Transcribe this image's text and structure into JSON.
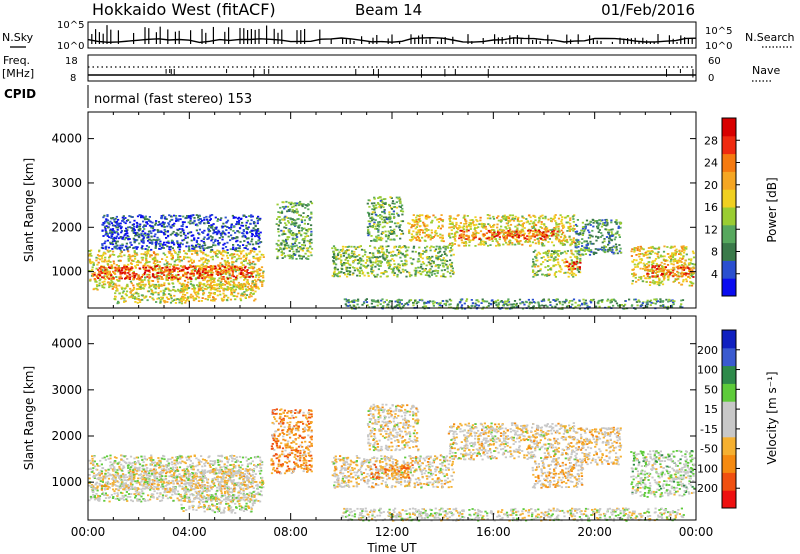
{
  "header": {
    "station": "Hokkaido West (fitACF)",
    "beam": "Beam 14",
    "date": "01/Feb/2016"
  },
  "strip_panels": {
    "nsky_label": "N.Sky",
    "nsearch_label": "N.Search",
    "nsky_ticks": [
      "10^5",
      "10^0"
    ],
    "freq_label_lines": [
      "Freq.",
      "[MHz]"
    ],
    "freq_ticks": [
      "18",
      "8"
    ],
    "nave_label": "Nave",
    "nave_ticks": [
      "60",
      "0"
    ],
    "cpid_label": "CPID",
    "cpid_text": "normal (fast stereo) 153"
  },
  "chart_data": [
    {
      "type": "heatmap",
      "name": "power",
      "xlabel": "Time UT",
      "ylabel": "Slant Range [km]",
      "x_range_hours": [
        0,
        24
      ],
      "ylim": [
        180,
        4600
      ],
      "yticks": [
        1000,
        2000,
        3000,
        4000
      ],
      "colorbar": {
        "label": "Power [dB]",
        "ticks": [
          "4",
          "8",
          "12",
          "16",
          "20",
          "24",
          "28"
        ],
        "colors": [
          "#0a0cf0",
          "#2a4fd0",
          "#3a7a4a",
          "#57a85e",
          "#9acd32",
          "#f0d020",
          "#f5a623",
          "#f57a10",
          "#ef2a10",
          "#d80000"
        ]
      },
      "bands": [
        {
          "t0": 0.0,
          "t1": 6.9,
          "r0": 600,
          "r1": 1500,
          "level": 0.55
        },
        {
          "t0": 0.2,
          "t1": 6.5,
          "r0": 850,
          "r1": 1150,
          "level": 0.85
        },
        {
          "t0": 1.0,
          "t1": 3.8,
          "r0": 300,
          "r1": 600,
          "level": 0.5
        },
        {
          "t0": 3.6,
          "t1": 6.6,
          "r0": 350,
          "r1": 750,
          "level": 0.55
        },
        {
          "t0": 0.5,
          "t1": 6.8,
          "r0": 1500,
          "r1": 2300,
          "level": 0.15
        },
        {
          "t0": 7.4,
          "t1": 8.8,
          "r0": 1300,
          "r1": 2600,
          "level": 0.35
        },
        {
          "t0": 9.6,
          "t1": 14.4,
          "r0": 900,
          "r1": 1600,
          "level": 0.4
        },
        {
          "t0": 11.0,
          "t1": 12.4,
          "r0": 1700,
          "r1": 2700,
          "level": 0.35
        },
        {
          "t0": 12.6,
          "t1": 14.0,
          "r0": 1700,
          "r1": 2300,
          "level": 0.6
        },
        {
          "t0": 14.2,
          "t1": 19.2,
          "r0": 1600,
          "r1": 2300,
          "level": 0.55
        },
        {
          "t0": 14.6,
          "t1": 18.6,
          "r0": 1750,
          "r1": 1950,
          "level": 0.8
        },
        {
          "t0": 17.5,
          "t1": 19.4,
          "r0": 900,
          "r1": 1500,
          "level": 0.45
        },
        {
          "t0": 18.8,
          "t1": 19.4,
          "r0": 1050,
          "r1": 1250,
          "level": 0.85
        },
        {
          "t0": 19.2,
          "t1": 21.0,
          "r0": 1400,
          "r1": 2200,
          "level": 0.3
        },
        {
          "t0": 21.4,
          "t1": 23.9,
          "r0": 700,
          "r1": 1600,
          "level": 0.55
        },
        {
          "t0": 22.0,
          "t1": 23.9,
          "r0": 900,
          "r1": 1150,
          "level": 0.8
        },
        {
          "t0": 10.0,
          "t1": 23.5,
          "r0": 180,
          "r1": 400,
          "level": 0.3
        }
      ]
    },
    {
      "type": "heatmap",
      "name": "velocity",
      "xlabel": "Time UT",
      "ylabel": "Slant Range [km]",
      "x_range_hours": [
        0,
        24
      ],
      "ylim": [
        180,
        4600
      ],
      "yticks": [
        1000,
        2000,
        3000,
        4000
      ],
      "xticks": [
        "00:00",
        "04:00",
        "08:00",
        "12:00",
        "16:00",
        "20:00",
        "00:00"
      ],
      "colorbar": {
        "label": "Velocity [m s⁻¹]",
        "ticks": [
          "-200",
          "-100",
          "-50",
          "-15",
          "15",
          "50",
          "100",
          "200"
        ],
        "colors": [
          "#ee1010",
          "#f05010",
          "#f58a10",
          "#f5b030",
          "#c8c8c8",
          "#c8c8c8",
          "#5ecb3a",
          "#2e8a4a",
          "#3a5ad0",
          "#1020c0"
        ]
      },
      "bands": [
        {
          "t0": 0.0,
          "t1": 6.9,
          "r0": 600,
          "r1": 1600,
          "level": 0.5
        },
        {
          "t0": 0.5,
          "t1": 6.5,
          "r0": 850,
          "r1": 1300,
          "level": 0.45
        },
        {
          "t0": 3.6,
          "t1": 6.6,
          "r0": 350,
          "r1": 750,
          "level": 0.5
        },
        {
          "t0": 7.2,
          "t1": 8.8,
          "r0": 1200,
          "r1": 2600,
          "level": 0.28
        },
        {
          "t0": 9.6,
          "t1": 14.4,
          "r0": 900,
          "r1": 1600,
          "level": 0.45
        },
        {
          "t0": 11.0,
          "t1": 12.8,
          "r0": 1100,
          "r1": 1400,
          "level": 0.28
        },
        {
          "t0": 11.0,
          "t1": 13.0,
          "r0": 1700,
          "r1": 2700,
          "level": 0.45
        },
        {
          "t0": 14.2,
          "t1": 19.2,
          "r0": 1500,
          "r1": 2300,
          "level": 0.45
        },
        {
          "t0": 17.5,
          "t1": 19.5,
          "r0": 900,
          "r1": 1500,
          "level": 0.4
        },
        {
          "t0": 19.2,
          "t1": 21.0,
          "r0": 1400,
          "r1": 2200,
          "level": 0.42
        },
        {
          "t0": 21.4,
          "t1": 23.9,
          "r0": 700,
          "r1": 1700,
          "level": 0.55
        },
        {
          "t0": 10.0,
          "t1": 23.5,
          "r0": 180,
          "r1": 450,
          "level": 0.5
        }
      ]
    }
  ]
}
